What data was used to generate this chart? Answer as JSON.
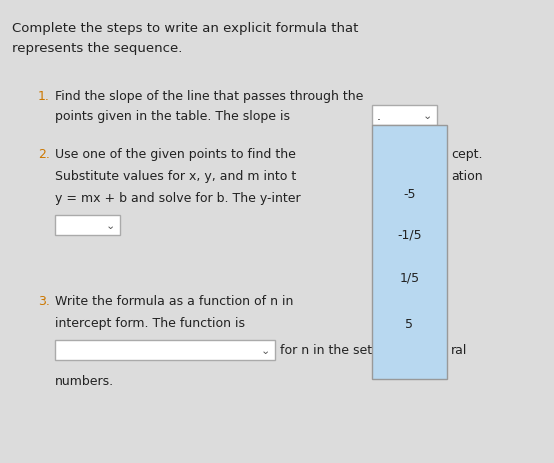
{
  "background_color": "#dcdcdc",
  "title_line1": "Complete the steps to write an explicit formula that",
  "title_line2": "represents the sequence.",
  "step1_text1": "Find the slope of the line that passes through the",
  "step1_text2": "points given in the table. The slope is",
  "step2_num": "2.",
  "step2_text1": "Use one of the given points to find the",
  "step2_text1b": "cept.",
  "step2_text2": "Substitute values for x, y, and m into t",
  "step2_text2b": "ation",
  "step2_text3": "y = mx + b and solve for b. The y-inter",
  "step3_num": "3.",
  "step3_text1": "Write the formula as a function of n in",
  "step3_text2": "intercept form. The function is",
  "step3_text3": "for n in the set",
  "step3_text4": "ral",
  "numbers_text": "numbers.",
  "dropdown_color": "#ffffff",
  "dropdown_border": "#aaaaaa",
  "dropdown_arrow_color": "#555555",
  "popup_color": "#b8d8f0",
  "popup_border": "#999999",
  "popup_items": [
    "-5",
    "-1/5",
    "1/5",
    "5"
  ],
  "step_number_color": "#cc7700",
  "text_color": "#222222",
  "title_color": "#222222",
  "font_size_title": 9.5,
  "font_size_step": 9.0,
  "font_size_popup": 9.0,
  "font_size_number": 9.0
}
